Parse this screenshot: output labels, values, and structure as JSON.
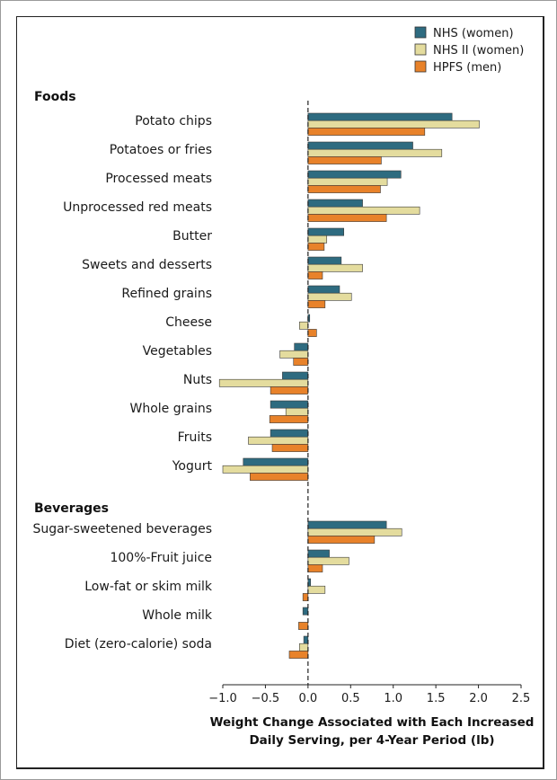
{
  "chart_data": {
    "type": "bar",
    "orientation": "horizontal",
    "xlabel": [
      "Weight Change Associated with Each Increased",
      "Daily Serving, per 4-Year Period (lb)"
    ],
    "xlim": [
      -1.0,
      2.5
    ],
    "xticks": [
      "−1.0",
      "−0.5",
      "0.0",
      "0.5",
      "1.0",
      "1.5",
      "2.0",
      "2.5"
    ],
    "xtick_values": [
      -1.0,
      -0.5,
      0.0,
      0.5,
      1.0,
      1.5,
      2.0,
      2.5
    ],
    "zero_line": "dashed",
    "legend_position": "top-right",
    "series": [
      {
        "name": "NHS (women)",
        "color": "#2e6b80"
      },
      {
        "name": "NHS II (women)",
        "color": "#e4dc9e"
      },
      {
        "name": "HPFS (men)",
        "color": "#e8822a"
      }
    ],
    "groups": [
      {
        "title": "Foods",
        "categories": [
          "Potato chips",
          "Potatoes or fries",
          "Processed meats",
          "Unprocessed red meats",
          "Butter",
          "Sweets and desserts",
          "Refined grains",
          "Cheese",
          "Vegetables",
          "Nuts",
          "Whole grains",
          "Fruits",
          "Yogurt"
        ],
        "values": [
          [
            1.69,
            2.01,
            1.37
          ],
          [
            1.23,
            1.57,
            0.86
          ],
          [
            1.09,
            0.93,
            0.85
          ],
          [
            0.64,
            1.31,
            0.92
          ],
          [
            0.42,
            0.22,
            0.19
          ],
          [
            0.39,
            0.64,
            0.17
          ],
          [
            0.37,
            0.51,
            0.2
          ],
          [
            0.02,
            -0.1,
            0.1
          ],
          [
            -0.16,
            -0.33,
            -0.17
          ],
          [
            -0.3,
            -1.04,
            -0.44
          ],
          [
            -0.44,
            -0.26,
            -0.45
          ],
          [
            -0.44,
            -0.7,
            -0.42
          ],
          [
            -0.76,
            -1.0,
            -0.68
          ]
        ]
      },
      {
        "title": "Beverages",
        "categories": [
          "Sugar-sweetened beverages",
          "100%-Fruit juice",
          "Low-fat or skim milk",
          "Whole milk",
          "Diet (zero-calorie) soda"
        ],
        "values": [
          [
            0.92,
            1.1,
            0.78
          ],
          [
            0.25,
            0.48,
            0.17
          ],
          [
            0.03,
            0.2,
            -0.06
          ],
          [
            -0.06,
            0.0,
            -0.11
          ],
          [
            -0.05,
            -0.1,
            -0.22
          ]
        ]
      }
    ]
  }
}
